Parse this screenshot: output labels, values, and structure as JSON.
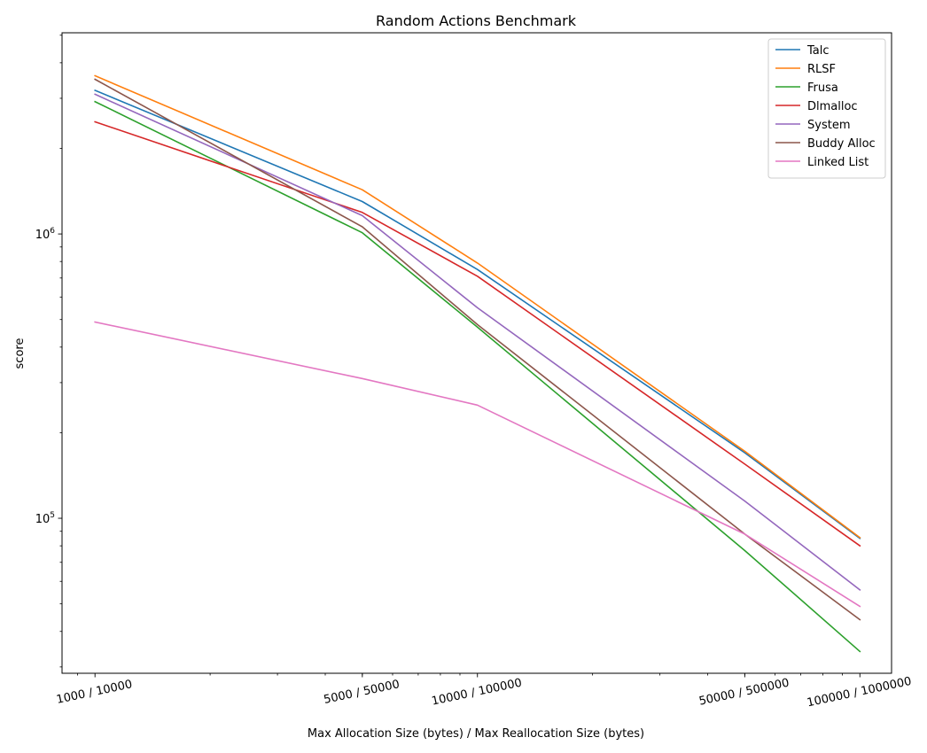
{
  "chart_data": {
    "type": "line",
    "title": "Random Actions Benchmark",
    "xlabel": "Max Allocation Size (bytes) / Max Reallocation Size (bytes)",
    "ylabel": "score",
    "x_scale": "log",
    "y_scale": "log",
    "x": [
      1000,
      5000,
      10000,
      50000,
      100000
    ],
    "x_tick_labels": [
      "1000 / 10000",
      "5000 / 50000",
      "10000 / 100000",
      "50000 / 500000",
      "100000 / 1000000"
    ],
    "y_major_ticks": [
      100000,
      1000000
    ],
    "y_major_tick_labels": [
      "10^5",
      "10^6"
    ],
    "grid": false,
    "legend_position": "top-right",
    "series": [
      {
        "name": "Talc",
        "color": "#1f77b4",
        "values": [
          3200000,
          1300000,
          750000,
          170000,
          85000
        ]
      },
      {
        "name": "RLSF",
        "color": "#ff7f0e",
        "values": [
          3600000,
          1430000,
          790000,
          172000,
          85500
        ]
      },
      {
        "name": "Frusa",
        "color": "#2ca02c",
        "values": [
          2920000,
          1010000,
          470000,
          77000,
          34000
        ]
      },
      {
        "name": "Dlmalloc",
        "color": "#d62728",
        "values": [
          2480000,
          1190000,
          710000,
          155000,
          80000
        ]
      },
      {
        "name": "System",
        "color": "#9467bd",
        "values": [
          3100000,
          1160000,
          550000,
          115000,
          56000
        ]
      },
      {
        "name": "Buddy Alloc",
        "color": "#8c564b",
        "values": [
          3500000,
          1060000,
          480000,
          88000,
          44000
        ]
      },
      {
        "name": "Linked List",
        "color": "#e377c2",
        "values": [
          490000,
          310000,
          250000,
          88000,
          49000
        ]
      }
    ]
  }
}
